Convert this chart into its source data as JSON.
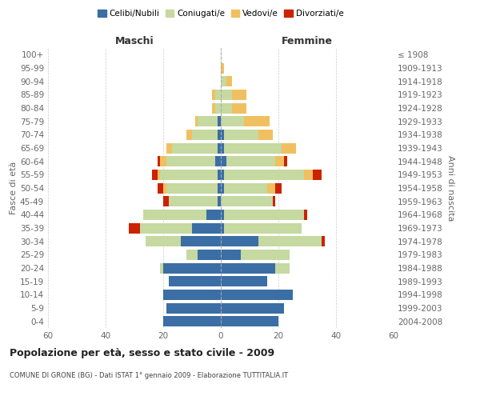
{
  "age_groups": [
    "0-4",
    "5-9",
    "10-14",
    "15-19",
    "20-24",
    "25-29",
    "30-34",
    "35-39",
    "40-44",
    "45-49",
    "50-54",
    "55-59",
    "60-64",
    "65-69",
    "70-74",
    "75-79",
    "80-84",
    "85-89",
    "90-94",
    "95-99",
    "100+"
  ],
  "birth_years": [
    "2004-2008",
    "1999-2003",
    "1994-1998",
    "1989-1993",
    "1984-1988",
    "1979-1983",
    "1974-1978",
    "1969-1973",
    "1964-1968",
    "1959-1963",
    "1954-1958",
    "1949-1953",
    "1944-1948",
    "1939-1943",
    "1934-1938",
    "1929-1933",
    "1924-1928",
    "1919-1923",
    "1914-1918",
    "1909-1913",
    "≤ 1908"
  ],
  "colors": {
    "single": "#3a6ea5",
    "married": "#c5d9a0",
    "widowed": "#f0c060",
    "divorced": "#cc2200"
  },
  "male": {
    "single": [
      20,
      19,
      20,
      18,
      20,
      8,
      14,
      10,
      5,
      1,
      1,
      1,
      2,
      1,
      1,
      1,
      0,
      0,
      0,
      0,
      0
    ],
    "married": [
      0,
      0,
      0,
      0,
      1,
      4,
      12,
      18,
      22,
      17,
      18,
      20,
      17,
      16,
      9,
      7,
      2,
      2,
      0,
      0,
      0
    ],
    "widowed": [
      0,
      0,
      0,
      0,
      0,
      0,
      0,
      0,
      0,
      0,
      1,
      1,
      2,
      2,
      2,
      1,
      1,
      1,
      0,
      0,
      0
    ],
    "divorced": [
      0,
      0,
      0,
      0,
      0,
      0,
      0,
      4,
      0,
      2,
      2,
      2,
      1,
      0,
      0,
      0,
      0,
      0,
      0,
      0,
      0
    ]
  },
  "female": {
    "single": [
      20,
      22,
      25,
      16,
      19,
      7,
      13,
      1,
      1,
      0,
      1,
      1,
      2,
      1,
      1,
      0,
      0,
      0,
      0,
      0,
      0
    ],
    "married": [
      0,
      0,
      0,
      0,
      5,
      17,
      22,
      27,
      28,
      18,
      15,
      28,
      17,
      20,
      12,
      8,
      4,
      4,
      2,
      0,
      0
    ],
    "widowed": [
      0,
      0,
      0,
      0,
      0,
      0,
      0,
      0,
      0,
      0,
      3,
      3,
      3,
      5,
      5,
      9,
      5,
      5,
      2,
      1,
      0
    ],
    "divorced": [
      0,
      0,
      0,
      0,
      0,
      0,
      1,
      0,
      1,
      1,
      2,
      3,
      1,
      0,
      0,
      0,
      0,
      0,
      0,
      0,
      0
    ]
  },
  "xlim": 60,
  "title": "Popolazione per età, sesso e stato civile - 2009",
  "subtitle": "COMUNE DI GRONE (BG) - Dati ISTAT 1° gennaio 2009 - Elaborazione TUTTITALIA.IT",
  "ylabel_left": "Fasce di età",
  "ylabel_right": "Anni di nascita",
  "xlabel_left": "Maschi",
  "xlabel_right": "Femmine",
  "legend_labels": [
    "Celibi/Nubili",
    "Coniugati/e",
    "Vedovi/e",
    "Divorziati/e"
  ],
  "bg_color": "#ffffff",
  "grid_color": "#cccccc",
  "axis_label_color": "#666666"
}
